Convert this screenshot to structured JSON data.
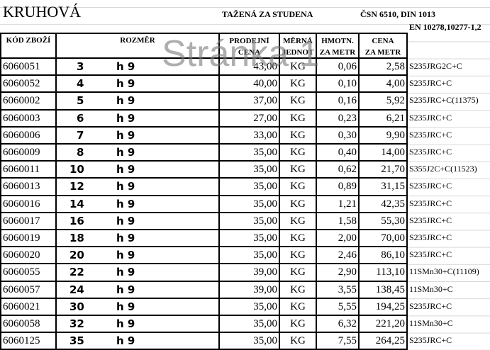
{
  "header": {
    "title": "KRUHOVÁ",
    "subtitle": "TAŽENÁ ZA STUDENA",
    "norm": "ČSN 6510, DIN 1013",
    "norm2": "EN 10278,10277-1,2",
    "watermark": "Stránka 1"
  },
  "table": {
    "columns": [
      [
        "KÓD ZBOŽÍ"
      ],
      [
        "ROZMĚR"
      ],
      [
        "PRODEJNÍ",
        "CENA"
      ],
      [
        "MĚRNÁ",
        "JEDNOT"
      ],
      [
        "HMOTN.",
        "ZA METR"
      ],
      [
        "CENA",
        "ZA METR"
      ]
    ],
    "rows": [
      [
        "6060051",
        "3",
        "h 9",
        "43,00",
        "KG",
        "0,06",
        "2,58",
        "S235JRG2C+C"
      ],
      [
        "6060052",
        "4",
        "h 9",
        "40,00",
        "KG",
        "0,10",
        "4,00",
        "S235JRC+C"
      ],
      [
        "6060002",
        "5",
        "h 9",
        "37,00",
        "KG",
        "0,16",
        "5,92",
        "S235JRC+C(11375)"
      ],
      [
        "6060003",
        "6",
        "h 9",
        "27,00",
        "KG",
        "0,23",
        "6,21",
        "S235JRC+C"
      ],
      [
        "6060006",
        "7",
        "h 9",
        "33,00",
        "KG",
        "0,30",
        "9,90",
        "S235JRC+C"
      ],
      [
        "6060009",
        "8",
        "h 9",
        "35,00",
        "KG",
        "0,40",
        "14,00",
        "S235JRC+C"
      ],
      [
        "6060011",
        "10",
        "h 9",
        "35,00",
        "KG",
        "0,62",
        "21,70",
        "S355J2C+C(11523)"
      ],
      [
        "6060013",
        "12",
        "h 9",
        "35,00",
        "KG",
        "0,89",
        "31,15",
        "S235JRC+C"
      ],
      [
        "6060016",
        "14",
        "h 9",
        "35,00",
        "KG",
        "1,21",
        "42,35",
        "S235JRC+C"
      ],
      [
        "6060017",
        "16",
        "h 9",
        "35,00",
        "KG",
        "1,58",
        "55,30",
        "S235JRC+C"
      ],
      [
        "6060019",
        "18",
        "h 9",
        "35,00",
        "KG",
        "2,00",
        "70,00",
        "S235JRC+C"
      ],
      [
        "6060020",
        "20",
        "h 9",
        "35,00",
        "KG",
        "2,46",
        "86,10",
        "S235JRC+C"
      ],
      [
        "6060055",
        "22",
        "h 9",
        "39,00",
        "KG",
        "2,90",
        "113,10",
        "11SMn30+C(11109)"
      ],
      [
        "6060057",
        "24",
        "h 9",
        "39,00",
        "KG",
        "3,55",
        "138,45",
        "11SMn30+C"
      ],
      [
        "6060021",
        "30",
        "h 9",
        "35,00",
        "KG",
        "5,55",
        "194,25",
        "S235JRC+C"
      ],
      [
        "6060058",
        "32",
        "h 9",
        "35,00",
        "KG",
        "6,32",
        "221,20",
        "11SMn30+C"
      ],
      [
        "6060125",
        "35",
        "h 9",
        "35,00",
        "KG",
        "7,55",
        "264,25",
        "S235JRC+C"
      ]
    ]
  }
}
